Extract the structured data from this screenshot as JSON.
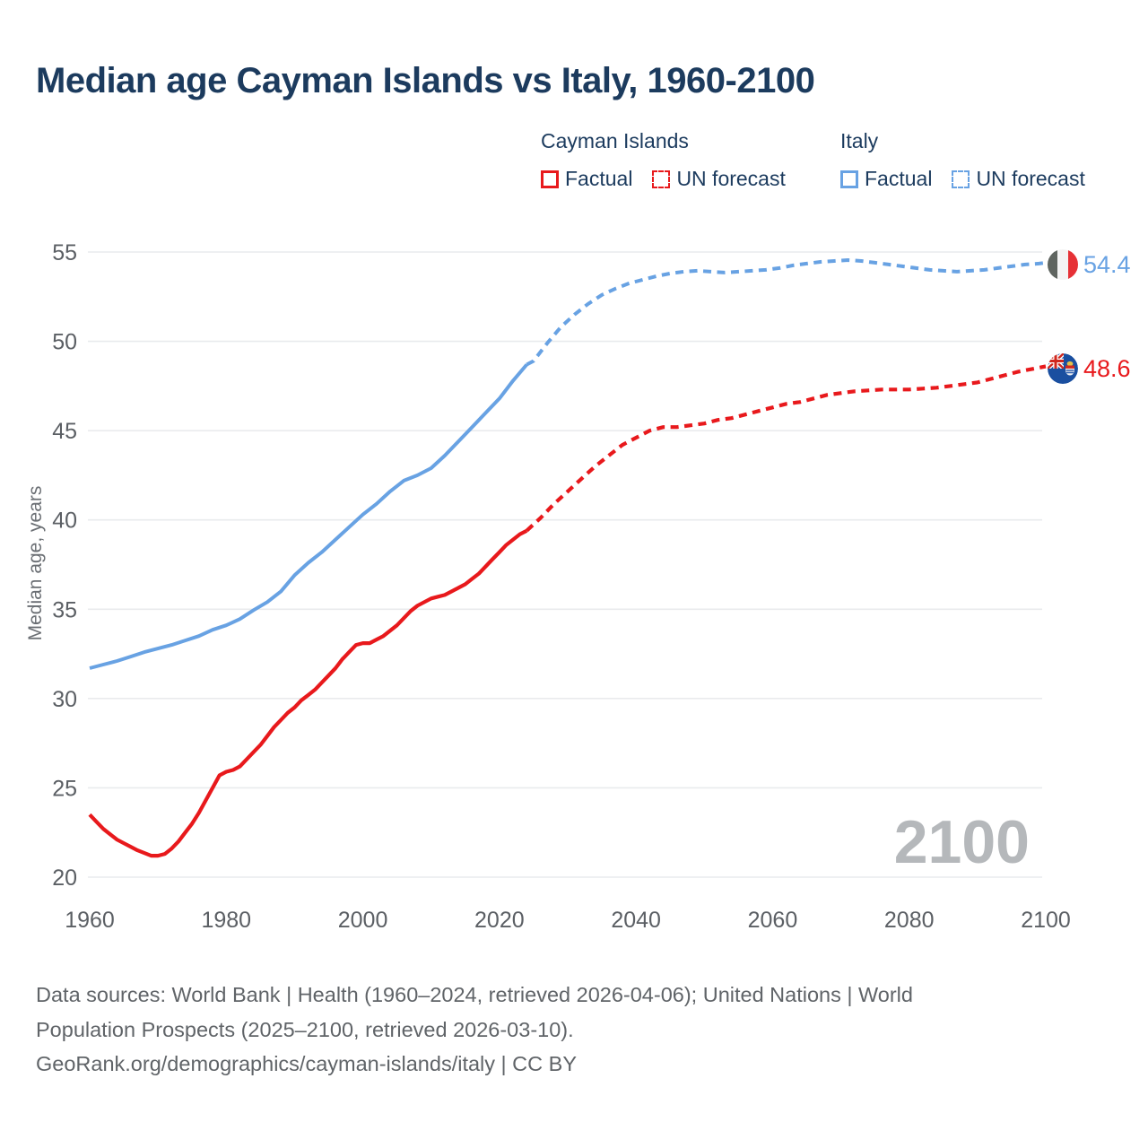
{
  "title": "Median age Cayman Islands vs Italy, 1960-2100",
  "legend": {
    "groups": [
      {
        "name": "Cayman Islands",
        "items": [
          {
            "label": "Factual",
            "style": "solid",
            "color": "#e8191c"
          },
          {
            "label": "UN forecast",
            "style": "dashed",
            "color": "#e8191c"
          }
        ]
      },
      {
        "name": "Italy",
        "items": [
          {
            "label": "Factual",
            "style": "solid",
            "color": "#68a2e3"
          },
          {
            "label": "UN forecast",
            "style": "dashed",
            "color": "#68a2e3"
          }
        ]
      }
    ]
  },
  "watermark": "2100",
  "end_labels": [
    {
      "country": "Italy",
      "value": "54.4",
      "color": "#68a2e3",
      "flag": "italy-flag"
    },
    {
      "country": "Cayman Islands",
      "value": "48.6",
      "color": "#e8191c",
      "flag": "cayman-islands-flag"
    }
  ],
  "footer": {
    "lines": [
      "Data sources: World Bank | Health (1960–2024, retrieved 2026-04-06); United Nations | World",
      "Population Prospects (2025–2100, retrieved 2026-03-10).",
      "GeoRank.org/demographics/cayman-islands/italy | CC BY"
    ]
  },
  "chart_data": {
    "type": "line",
    "title": "Median age Cayman Islands vs Italy, 1960-2100",
    "xlabel": "",
    "ylabel": "Median age, years",
    "xlim": [
      1960,
      2100
    ],
    "ylim": [
      20,
      55
    ],
    "xticks": [
      1960,
      1980,
      2000,
      2020,
      2040,
      2060,
      2080,
      2100
    ],
    "yticks": [
      55,
      50,
      45,
      40,
      35,
      30,
      25,
      20
    ],
    "grid": "horizontal",
    "legend_position": "top",
    "colors": {
      "cayman": "#e8191c",
      "italy": "#68a2e3",
      "gridline": "#e9ebed",
      "tick_text": "#5b5f64",
      "axis_label": "#6a6e73",
      "watermark": "#b5b8bb"
    },
    "series": [
      {
        "name": "Italy — Factual",
        "slug": "italy-factual",
        "color": "#68a2e3",
        "line_style": "solid",
        "width": 4,
        "points": [
          [
            1960,
            31.7
          ],
          [
            1962,
            31.9
          ],
          [
            1964,
            32.1
          ],
          [
            1966,
            32.35
          ],
          [
            1968,
            32.6
          ],
          [
            1970,
            32.8
          ],
          [
            1972,
            33.0
          ],
          [
            1974,
            33.25
          ],
          [
            1976,
            33.5
          ],
          [
            1978,
            33.85
          ],
          [
            1980,
            34.1
          ],
          [
            1982,
            34.45
          ],
          [
            1984,
            34.95
          ],
          [
            1986,
            35.4
          ],
          [
            1988,
            36.0
          ],
          [
            1990,
            36.9
          ],
          [
            1992,
            37.6
          ],
          [
            1994,
            38.2
          ],
          [
            1996,
            38.9
          ],
          [
            1998,
            39.6
          ],
          [
            2000,
            40.3
          ],
          [
            2002,
            40.9
          ],
          [
            2004,
            41.6
          ],
          [
            2006,
            42.2
          ],
          [
            2008,
            42.5
          ],
          [
            2010,
            42.9
          ],
          [
            2012,
            43.6
          ],
          [
            2014,
            44.4
          ],
          [
            2016,
            45.2
          ],
          [
            2018,
            46.0
          ],
          [
            2020,
            46.8
          ],
          [
            2022,
            47.8
          ],
          [
            2024,
            48.7
          ]
        ]
      },
      {
        "name": "Italy — UN forecast",
        "slug": "italy-forecast",
        "color": "#68a2e3",
        "line_style": "dashed",
        "width": 4,
        "points": [
          [
            2024,
            48.7
          ],
          [
            2025,
            48.9
          ],
          [
            2027,
            49.9
          ],
          [
            2029,
            50.8
          ],
          [
            2031,
            51.5
          ],
          [
            2033,
            52.1
          ],
          [
            2035,
            52.6
          ],
          [
            2037,
            52.95
          ],
          [
            2039,
            53.25
          ],
          [
            2041,
            53.45
          ],
          [
            2043,
            53.65
          ],
          [
            2045,
            53.8
          ],
          [
            2047,
            53.9
          ],
          [
            2049,
            53.95
          ],
          [
            2051,
            53.9
          ],
          [
            2053,
            53.85
          ],
          [
            2055,
            53.9
          ],
          [
            2057,
            53.95
          ],
          [
            2059,
            54.0
          ],
          [
            2061,
            54.1
          ],
          [
            2063,
            54.25
          ],
          [
            2065,
            54.35
          ],
          [
            2067,
            54.45
          ],
          [
            2069,
            54.5
          ],
          [
            2071,
            54.55
          ],
          [
            2073,
            54.5
          ],
          [
            2075,
            54.4
          ],
          [
            2077,
            54.3
          ],
          [
            2079,
            54.2
          ],
          [
            2081,
            54.1
          ],
          [
            2083,
            54.0
          ],
          [
            2085,
            53.95
          ],
          [
            2087,
            53.9
          ],
          [
            2089,
            53.95
          ],
          [
            2091,
            54.0
          ],
          [
            2093,
            54.1
          ],
          [
            2095,
            54.2
          ],
          [
            2097,
            54.3
          ],
          [
            2099,
            54.35
          ],
          [
            2100,
            54.4
          ]
        ]
      },
      {
        "name": "Cayman Islands — Factual",
        "slug": "cayman-factual",
        "color": "#e8191c",
        "line_style": "solid",
        "width": 4.2,
        "points": [
          [
            1960,
            23.5
          ],
          [
            1961,
            23.1
          ],
          [
            1962,
            22.7
          ],
          [
            1963,
            22.4
          ],
          [
            1964,
            22.1
          ],
          [
            1965,
            21.9
          ],
          [
            1966,
            21.7
          ],
          [
            1967,
            21.5
          ],
          [
            1968,
            21.35
          ],
          [
            1969,
            21.2
          ],
          [
            1970,
            21.2
          ],
          [
            1971,
            21.3
          ],
          [
            1972,
            21.6
          ],
          [
            1973,
            22.0
          ],
          [
            1974,
            22.5
          ],
          [
            1975,
            23.0
          ],
          [
            1976,
            23.6
          ],
          [
            1977,
            24.3
          ],
          [
            1978,
            25.0
          ],
          [
            1979,
            25.7
          ],
          [
            1980,
            25.9
          ],
          [
            1981,
            26.0
          ],
          [
            1982,
            26.2
          ],
          [
            1983,
            26.6
          ],
          [
            1984,
            27.0
          ],
          [
            1985,
            27.4
          ],
          [
            1986,
            27.9
          ],
          [
            1987,
            28.4
          ],
          [
            1988,
            28.8
          ],
          [
            1989,
            29.2
          ],
          [
            1990,
            29.5
          ],
          [
            1991,
            29.9
          ],
          [
            1992,
            30.2
          ],
          [
            1993,
            30.5
          ],
          [
            1994,
            30.9
          ],
          [
            1995,
            31.3
          ],
          [
            1996,
            31.7
          ],
          [
            1997,
            32.2
          ],
          [
            1998,
            32.6
          ],
          [
            1999,
            33.0
          ],
          [
            2000,
            33.1
          ],
          [
            2001,
            33.1
          ],
          [
            2002,
            33.3
          ],
          [
            2003,
            33.5
          ],
          [
            2004,
            33.8
          ],
          [
            2005,
            34.1
          ],
          [
            2006,
            34.5
          ],
          [
            2007,
            34.9
          ],
          [
            2008,
            35.2
          ],
          [
            2009,
            35.4
          ],
          [
            2010,
            35.6
          ],
          [
            2011,
            35.7
          ],
          [
            2012,
            35.8
          ],
          [
            2013,
            36.0
          ],
          [
            2014,
            36.2
          ],
          [
            2015,
            36.4
          ],
          [
            2016,
            36.7
          ],
          [
            2017,
            37.0
          ],
          [
            2018,
            37.4
          ],
          [
            2019,
            37.8
          ],
          [
            2020,
            38.2
          ],
          [
            2021,
            38.6
          ],
          [
            2022,
            38.9
          ],
          [
            2023,
            39.2
          ],
          [
            2024,
            39.4
          ]
        ]
      },
      {
        "name": "Cayman Islands — UN forecast",
        "slug": "cayman-forecast",
        "color": "#e8191c",
        "line_style": "dashed",
        "width": 4.2,
        "points": [
          [
            2024,
            39.4
          ],
          [
            2026,
            40.1
          ],
          [
            2028,
            40.9
          ],
          [
            2030,
            41.6
          ],
          [
            2032,
            42.3
          ],
          [
            2034,
            43.0
          ],
          [
            2036,
            43.6
          ],
          [
            2038,
            44.2
          ],
          [
            2040,
            44.6
          ],
          [
            2042,
            45.0
          ],
          [
            2044,
            45.2
          ],
          [
            2046,
            45.2
          ],
          [
            2048,
            45.3
          ],
          [
            2050,
            45.4
          ],
          [
            2052,
            45.6
          ],
          [
            2054,
            45.7
          ],
          [
            2056,
            45.9
          ],
          [
            2058,
            46.1
          ],
          [
            2060,
            46.3
          ],
          [
            2062,
            46.5
          ],
          [
            2064,
            46.6
          ],
          [
            2066,
            46.8
          ],
          [
            2068,
            47.0
          ],
          [
            2070,
            47.1
          ],
          [
            2072,
            47.2
          ],
          [
            2074,
            47.25
          ],
          [
            2076,
            47.3
          ],
          [
            2078,
            47.3
          ],
          [
            2080,
            47.3
          ],
          [
            2082,
            47.35
          ],
          [
            2084,
            47.4
          ],
          [
            2086,
            47.5
          ],
          [
            2088,
            47.6
          ],
          [
            2090,
            47.7
          ],
          [
            2092,
            47.9
          ],
          [
            2094,
            48.1
          ],
          [
            2096,
            48.3
          ],
          [
            2098,
            48.45
          ],
          [
            2100,
            48.6
          ]
        ]
      }
    ],
    "end_annotations": [
      {
        "series": "Italy — UN forecast",
        "x": 2100,
        "y": 54.4,
        "label": "54.4"
      },
      {
        "series": "Cayman Islands — UN forecast",
        "x": 2100,
        "y": 48.6,
        "label": "48.6"
      }
    ]
  }
}
